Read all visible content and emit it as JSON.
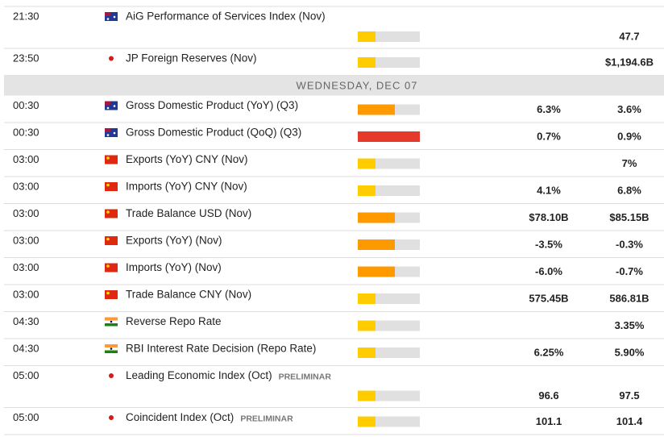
{
  "calendar": {
    "rows": [
      {
        "time": "21:30",
        "country": "au",
        "event": "AiG Performance of Services Index (Nov)",
        "impact": "low",
        "forecast": null,
        "previous": "47.7",
        "tall": true
      },
      {
        "time": "23:50",
        "country": "jp",
        "event": "JP Foreign Reserves (Nov)",
        "impact": "low",
        "forecast": null,
        "previous": "$1,194.6B"
      },
      {
        "day": "WEDNESDAY, DEC 07"
      },
      {
        "time": "00:30",
        "country": "au",
        "event": "Gross Domestic Product (YoY) (Q3)",
        "impact": "medium",
        "forecast": "6.3%",
        "previous": "3.6%"
      },
      {
        "time": "00:30",
        "country": "au",
        "event": "Gross Domestic Product (QoQ) (Q3)",
        "impact": "high",
        "forecast": "0.7%",
        "previous": "0.9%"
      },
      {
        "time": "03:00",
        "country": "cn",
        "event": "Exports (YoY) CNY (Nov)",
        "impact": "low",
        "forecast": null,
        "previous": "7%"
      },
      {
        "time": "03:00",
        "country": "cn",
        "event": "Imports (YoY) CNY (Nov)",
        "impact": "low",
        "forecast": "4.1%",
        "previous": "6.8%"
      },
      {
        "time": "03:00",
        "country": "cn",
        "event": "Trade Balance USD (Nov)",
        "impact": "medium",
        "forecast": "$78.10B",
        "previous": "$85.15B"
      },
      {
        "time": "03:00",
        "country": "cn",
        "event": "Exports (YoY) (Nov)",
        "impact": "medium",
        "forecast": "-3.5%",
        "previous": "-0.3%"
      },
      {
        "time": "03:00",
        "country": "cn",
        "event": "Imports (YoY) (Nov)",
        "impact": "medium",
        "forecast": "-6.0%",
        "previous": "-0.7%"
      },
      {
        "time": "03:00",
        "country": "cn",
        "event": "Trade Balance CNY (Nov)",
        "impact": "low",
        "forecast": "575.45B",
        "previous": "586.81B"
      },
      {
        "time": "04:30",
        "country": "in",
        "event": "Reverse Repo Rate",
        "impact": "low",
        "forecast": null,
        "previous": "3.35%"
      },
      {
        "time": "04:30",
        "country": "in",
        "event": "RBI Interest Rate Decision (Repo Rate)",
        "impact": "low",
        "forecast": "6.25%",
        "previous": "5.90%"
      },
      {
        "time": "05:00",
        "country": "jp",
        "event": "Leading Economic Index (Oct)",
        "tag": "PRELIMINAR",
        "impact": "low",
        "forecast": "96.6",
        "previous": "97.5",
        "tall": true
      },
      {
        "time": "05:00",
        "country": "jp",
        "event": "Coincident Index (Oct)",
        "tag": "PRELIMINAR",
        "impact": "low",
        "forecast": "101.1",
        "previous": "101.4"
      }
    ]
  }
}
